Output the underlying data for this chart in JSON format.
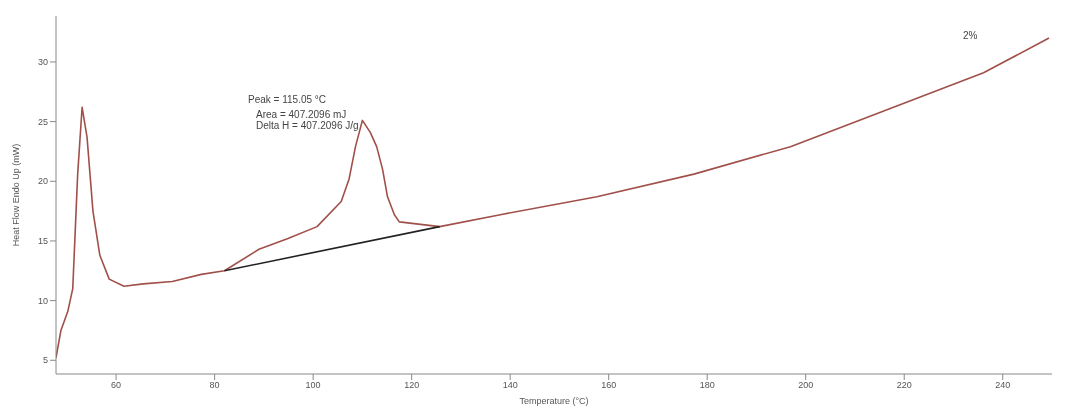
{
  "chart_data": {
    "type": "line",
    "xlabel": "Temperature (°C)",
    "ylabel": "Heat Flow Endo Up (mW)",
    "xlim": [
      47.8,
      250
    ],
    "xticks": [
      60,
      80,
      100,
      120,
      140,
      160,
      180,
      200,
      220,
      240
    ],
    "ylim": [
      3.85,
      33.85
    ],
    "yticks": [
      5,
      10,
      15,
      20,
      25,
      30
    ],
    "marker": "none",
    "line_style": "solid",
    "annotations": [
      "Peak = 115.05 °C",
      "Area = 407.2096 mJ",
      "Delta H = 407.2096 J/g",
      "2%"
    ],
    "series": [
      {
        "color": "#a0504a",
        "x": [
          47.8,
          48.8,
          50.2,
          51.2,
          52.2,
          53.1,
          54.1,
          55.3,
          56.7,
          58.6,
          61.6,
          65.5,
          71.4,
          77.3,
          82,
          89,
          94.9,
          100.8,
          105.7,
          107.3,
          108.6,
          110,
          111.6,
          112.9,
          114.1,
          115.1,
          116.5,
          117.5,
          125.7,
          138,
          157.6,
          177.3,
          196.9,
          216.5,
          236.1,
          249.4
        ],
        "values": [
          5.2,
          7.5,
          9.1,
          11,
          20.6,
          26.2,
          23.7,
          17.5,
          13.8,
          11.8,
          11.2,
          11.4,
          11.6,
          12.2,
          12.5,
          14.3,
          15.2,
          16.2,
          18.3,
          20.2,
          22.9,
          25.1,
          24.1,
          22.9,
          21,
          18.7,
          17.2,
          16.6,
          16.2,
          17.2,
          18.7,
          20.6,
          22.9,
          26,
          29.1,
          32
        ]
      },
      {
        "color": "#222222",
        "x": [
          82,
          125.7
        ],
        "values": [
          12.5,
          16.2
        ]
      }
    ]
  }
}
